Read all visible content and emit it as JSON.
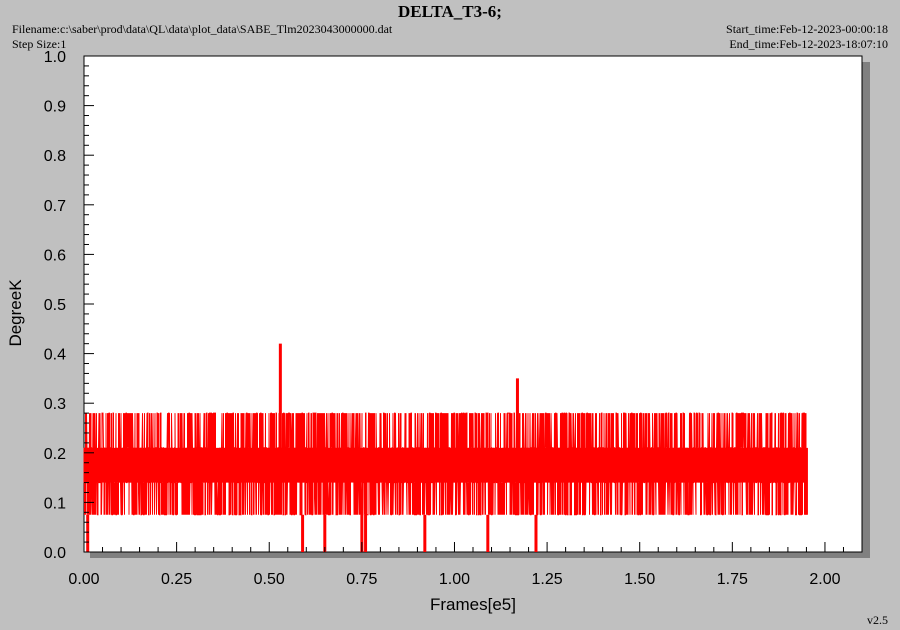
{
  "header": {
    "title": "DELTA_T3-6;",
    "filename": "Filename:c:\\saber\\prod\\data\\QL\\data\\plot_data\\SABE_Tlm2023043000000.dat",
    "step_size": "Step Size:1",
    "start_time": "Start_time:Feb-12-2023-00:00:18",
    "end_time": "End_time:Feb-12-2023-18:07:10"
  },
  "footer": {
    "version": "v2.5"
  },
  "colors": {
    "series": "#ff0000",
    "background": "#c0c0c0",
    "plot_area": "#ffffff",
    "shadow": "#808080"
  },
  "chart_data": {
    "type": "line",
    "title": "DELTA_T3-6;",
    "xlabel": "Frames[e5]",
    "ylabel": "DegreeK",
    "xlim": [
      0.0,
      2.1
    ],
    "ylim": [
      0.0,
      1.0
    ],
    "x_ticks": [
      "0.00",
      "0.25",
      "0.50",
      "0.75",
      "1.00",
      "1.25",
      "1.50",
      "1.75",
      "2.00"
    ],
    "y_ticks": [
      "0.0",
      "0.1",
      "0.2",
      "0.3",
      "0.4",
      "0.5",
      "0.6",
      "0.7",
      "0.8",
      "0.9",
      "1.0"
    ],
    "grid": false,
    "series": [
      {
        "color": "#ff0000",
        "x_range": [
          0.0,
          1.95
        ],
        "band": {
          "low": 0.075,
          "high": 0.28,
          "common_levels": [
            0.075,
            0.14,
            0.21,
            0.28
          ]
        },
        "spikes": [
          {
            "x": 0.53,
            "y": 0.42
          },
          {
            "x": 1.17,
            "y": 0.35
          }
        ],
        "dropouts": [
          {
            "x": 0.01,
            "y": 0.0
          },
          {
            "x": 0.59,
            "y": 0.0
          },
          {
            "x": 0.65,
            "y": 0.0
          },
          {
            "x": 0.75,
            "y": 0.0
          },
          {
            "x": 0.76,
            "y": 0.0
          },
          {
            "x": 0.92,
            "y": 0.0
          },
          {
            "x": 1.09,
            "y": 0.0
          },
          {
            "x": 1.22,
            "y": 0.0
          }
        ]
      }
    ]
  }
}
